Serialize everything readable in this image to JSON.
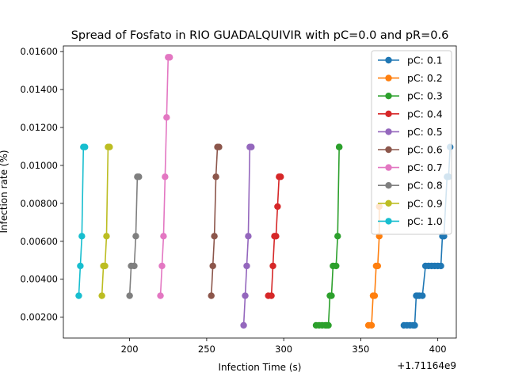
{
  "chart_data": {
    "type": "line",
    "title": "Spread of Fosfato in RIO GUADALQUIVIR with pC=0.0 and pR=0.6",
    "xlabel": "Infection Time (s)",
    "ylabel": "Infection rate (%)",
    "x_offset_label": "+1.71164e9",
    "xlim": [
      157,
      412
    ],
    "ylim": [
      0.0009,
      0.0163
    ],
    "xticks": [
      200,
      250,
      300,
      350,
      400
    ],
    "yticks": [
      0.002,
      0.004,
      0.006,
      0.008,
      0.01,
      0.012,
      0.014,
      0.016
    ],
    "ytick_labels": [
      "0.00200",
      "0.00400",
      "0.00600",
      "0.00800",
      "0.01000",
      "0.01200",
      "0.01400",
      "0.01600"
    ],
    "legend_position": "top-right",
    "grid": false,
    "series": [
      {
        "name": "pC: 0.1",
        "color": "#1f77b4",
        "points": [
          [
            378,
            0.00157
          ],
          [
            380,
            0.00157
          ],
          [
            382,
            0.00157
          ],
          [
            384,
            0.00157
          ],
          [
            385,
            0.00157
          ],
          [
            386,
            0.00313
          ],
          [
            387,
            0.00313
          ],
          [
            388,
            0.00313
          ],
          [
            390,
            0.00313
          ],
          [
            392,
            0.0047
          ],
          [
            394,
            0.0047
          ],
          [
            396,
            0.0047
          ],
          [
            398,
            0.0047
          ],
          [
            400,
            0.0047
          ],
          [
            402,
            0.0047
          ],
          [
            403,
            0.00627
          ],
          [
            404,
            0.00627
          ],
          [
            406,
            0.0094
          ],
          [
            407,
            0.0094
          ],
          [
            408,
            0.01097
          ]
        ]
      },
      {
        "name": "pC: 0.2",
        "color": "#ff7f0e",
        "points": [
          [
            355,
            0.00157
          ],
          [
            357,
            0.00157
          ],
          [
            358,
            0.00313
          ],
          [
            359,
            0.00313
          ],
          [
            360,
            0.0047
          ],
          [
            361,
            0.0047
          ],
          [
            362,
            0.00627
          ],
          [
            362,
            0.00783
          ]
        ]
      },
      {
        "name": "pC: 0.3",
        "color": "#2ca02c",
        "points": [
          [
            321,
            0.00157
          ],
          [
            323,
            0.00157
          ],
          [
            325,
            0.00157
          ],
          [
            327,
            0.00157
          ],
          [
            328,
            0.00157
          ],
          [
            329,
            0.00157
          ],
          [
            330,
            0.00313
          ],
          [
            331,
            0.00313
          ],
          [
            332,
            0.0047
          ],
          [
            334,
            0.0047
          ],
          [
            335,
            0.00627
          ],
          [
            336,
            0.01097
          ],
          [
            336,
            0.01097
          ]
        ]
      },
      {
        "name": "pC: 0.4",
        "color": "#d62728",
        "points": [
          [
            290,
            0.00313
          ],
          [
            292,
            0.00313
          ],
          [
            293,
            0.0047
          ],
          [
            294,
            0.00627
          ],
          [
            295,
            0.00627
          ],
          [
            296,
            0.00783
          ],
          [
            297,
            0.0094
          ],
          [
            298,
            0.0094
          ]
        ]
      },
      {
        "name": "pC: 0.5",
        "color": "#9467bd",
        "points": [
          [
            274,
            0.00157
          ],
          [
            275,
            0.00313
          ],
          [
            276,
            0.0047
          ],
          [
            277,
            0.00627
          ],
          [
            278,
            0.01097
          ],
          [
            279,
            0.01097
          ]
        ]
      },
      {
        "name": "pC: 0.6",
        "color": "#8c564b",
        "points": [
          [
            253,
            0.00313
          ],
          [
            254,
            0.0047
          ],
          [
            255,
            0.00627
          ],
          [
            256,
            0.0094
          ],
          [
            257,
            0.01097
          ],
          [
            258,
            0.01097
          ]
        ]
      },
      {
        "name": "pC: 0.7",
        "color": "#e377c2",
        "points": [
          [
            220,
            0.00313
          ],
          [
            221,
            0.0047
          ],
          [
            222,
            0.00627
          ],
          [
            223,
            0.0094
          ],
          [
            224,
            0.01253
          ],
          [
            225,
            0.0157
          ],
          [
            226,
            0.0157
          ]
        ]
      },
      {
        "name": "pC: 0.8",
        "color": "#7f7f7f",
        "points": [
          [
            200,
            0.00313
          ],
          [
            201,
            0.0047
          ],
          [
            203,
            0.0047
          ],
          [
            204,
            0.00627
          ],
          [
            205,
            0.0094
          ],
          [
            206,
            0.0094
          ]
        ]
      },
      {
        "name": "pC: 0.9",
        "color": "#bcbd22",
        "points": [
          [
            182,
            0.00313
          ],
          [
            183,
            0.0047
          ],
          [
            184,
            0.0047
          ],
          [
            185,
            0.00627
          ],
          [
            186,
            0.01097
          ],
          [
            187,
            0.01097
          ]
        ]
      },
      {
        "name": "pC: 1.0",
        "color": "#17becf",
        "points": [
          [
            167,
            0.00313
          ],
          [
            168,
            0.0047
          ],
          [
            169,
            0.00627
          ],
          [
            170,
            0.01097
          ],
          [
            171,
            0.01097
          ]
        ]
      }
    ]
  }
}
